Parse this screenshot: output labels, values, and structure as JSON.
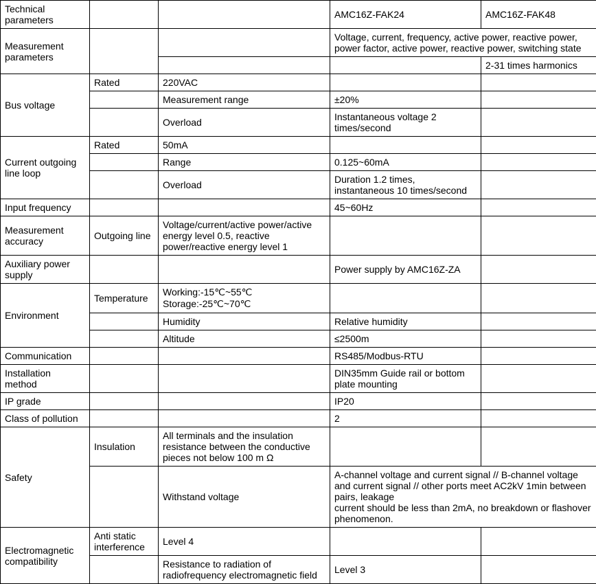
{
  "table": {
    "header": {
      "tech_params": "Technical parameters",
      "model_a": "AMC16Z-FAK24",
      "model_b": "AMC16Z-FAK48"
    },
    "measurement_params": {
      "label": "Measurement parameters",
      "value_top": "Voltage, current, frequency, active power, reactive power, power factor, active power, reactive power, switching state",
      "value_bottom": "2-31 times harmonics"
    },
    "bus_voltage": {
      "label": "Bus voltage",
      "rated_label": "Rated",
      "rated_value": "220VAC",
      "range_label": "Measurement range",
      "range_value": "±20%",
      "overload_label": "Overload",
      "overload_value": "Instantaneous voltage 2 times/second"
    },
    "current_loop": {
      "label": "Current outgoing line loop",
      "rated_label": "Rated",
      "rated_value": "50mA",
      "range_label": "Range",
      "range_value": "0.125~60mA",
      "overload_label": "Overload",
      "overload_value": "Duration 1.2 times, instantaneous 10 times/second"
    },
    "input_freq": {
      "label": "Input frequency",
      "value": "45~60Hz"
    },
    "meas_accuracy": {
      "label": "Measurement accuracy",
      "sub_label": "Outgoing line",
      "value": "Voltage/current/active power/active energy level 0.5, reactive power/reactive energy level 1"
    },
    "aux_power": {
      "label": "Auxiliary power supply",
      "value": "Power supply by AMC16Z-ZA"
    },
    "environment": {
      "label": "Environment",
      "temp_label": "Temperature",
      "temp_value": "Working:-15℃~55℃ Storage:-25℃~70℃",
      "humidity_label": "Humidity",
      "humidity_value": "Relative humidity",
      "altitude_label": "Altitude",
      "altitude_value": "≤2500m"
    },
    "communication": {
      "label": "Communication",
      "value": "RS485/Modbus-RTU"
    },
    "installation": {
      "label": "Installation method",
      "value": "DIN35mm Guide rail or bottom plate mounting"
    },
    "ip_grade": {
      "label": "IP grade",
      "value": "IP20"
    },
    "pollution": {
      "label": "Class of pollution",
      "value": "2"
    },
    "safety": {
      "label": "Safety",
      "insulation_label": "Insulation",
      "insulation_value": "All terminals and the insulation resistance between the conductive pieces not below 100 m Ω",
      "withstand_label": "Withstand voltage",
      "withstand_value": "A-channel voltage and current signal // B-channel voltage and current signal // other ports meet AC2kV 1min between pairs, leakage\ncurrent should be less than 2mA, no breakdown or flashover phenomenon."
    },
    "emc": {
      "label": "Electromagnetic compatibility",
      "anti_static_label": "Anti static interference",
      "anti_static_value": "Level 4",
      "radiation_label": "Resistance to radiation of radiofrequency electromagnetic field",
      "radiation_value": "Level 3"
    }
  }
}
